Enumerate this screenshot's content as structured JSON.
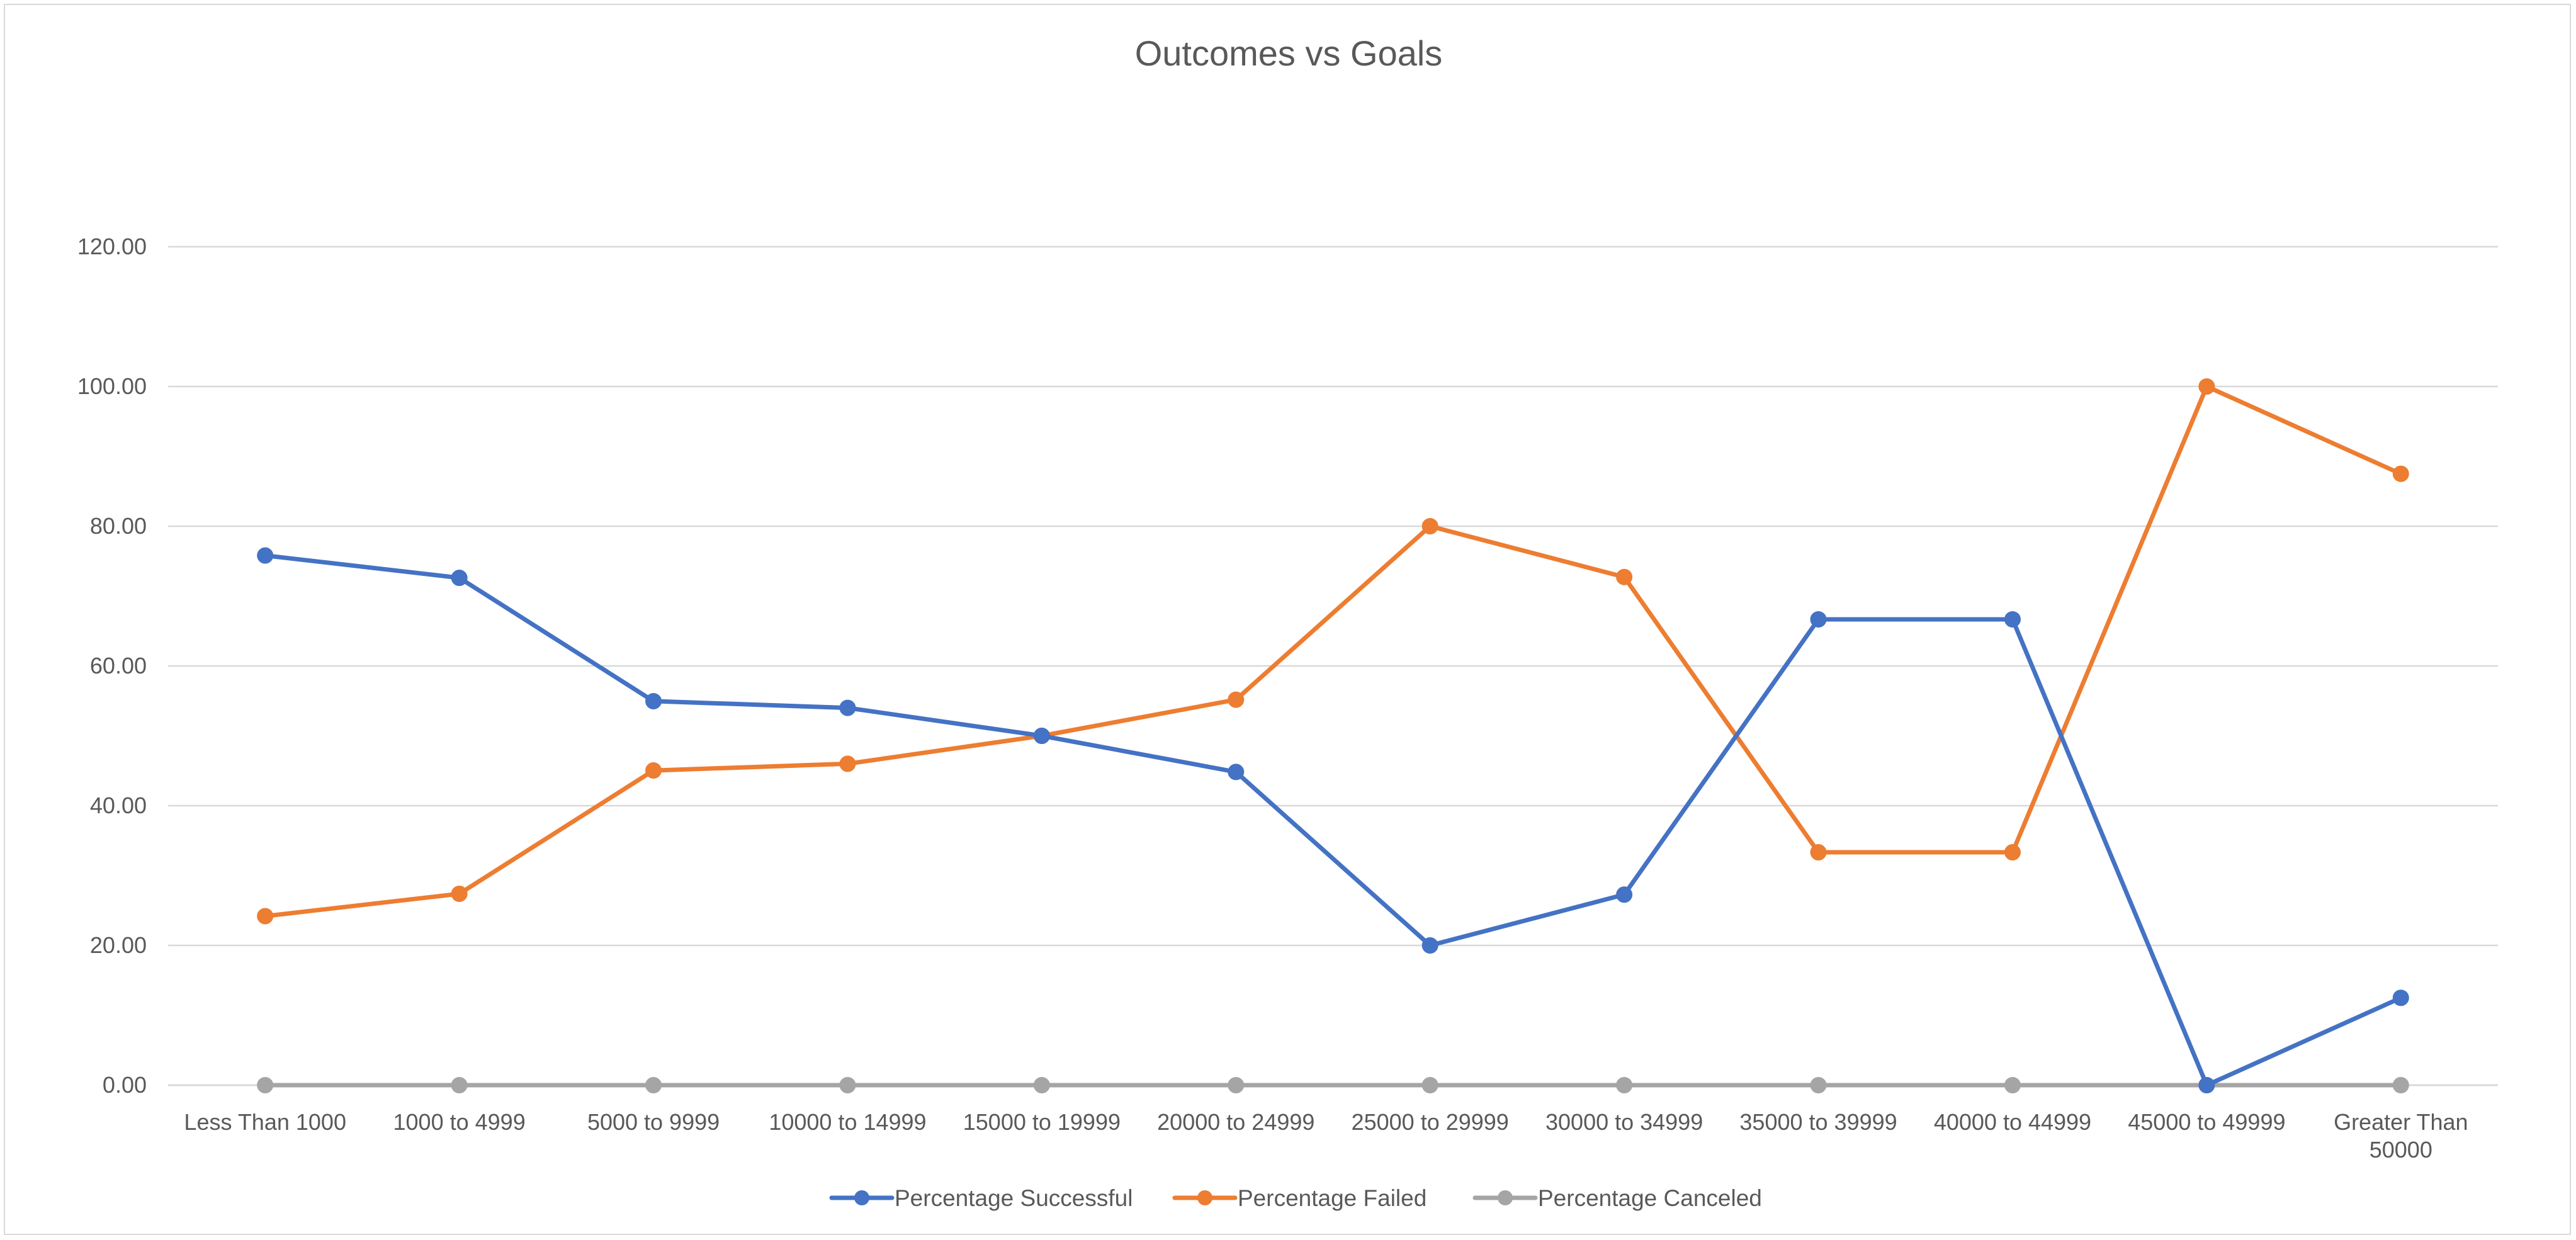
{
  "chart_data": {
    "type": "line",
    "title": "Outcomes vs Goals",
    "xlabel": "",
    "ylabel": "",
    "categories": [
      "Less Than 1000",
      "1000 to 4999",
      "5000 to 9999",
      "10000 to 14999",
      "15000 to 19999",
      "20000 to 24999",
      "25000 to 29999",
      "30000 to 34999",
      "35000 to 39999",
      "40000 to 44999",
      "45000 to 49999",
      "Greater Than 50000"
    ],
    "series": [
      {
        "name": "Percentage Successful",
        "color": "#4472c4",
        "values": [
          75.81,
          72.61,
          54.96,
          54.0,
          50.0,
          44.83,
          20.0,
          27.27,
          66.67,
          66.67,
          0.0,
          12.5
        ]
      },
      {
        "name": "Percentage Failed",
        "color": "#ed7d31",
        "values": [
          24.19,
          27.39,
          45.04,
          46.0,
          50.0,
          55.17,
          80.0,
          72.73,
          33.33,
          33.33,
          100.0,
          87.5
        ]
      },
      {
        "name": "Percentage Canceled",
        "color": "#a5a5a5",
        "values": [
          0,
          0,
          0,
          0,
          0,
          0,
          0,
          0,
          0,
          0,
          0,
          0
        ]
      }
    ],
    "ylim": [
      0,
      120
    ],
    "ytick_step": 20,
    "ytick_labels": [
      "0.00",
      "20.00",
      "40.00",
      "60.00",
      "80.00",
      "100.00",
      "120.00"
    ],
    "grid": true,
    "legend_position": "bottom"
  }
}
